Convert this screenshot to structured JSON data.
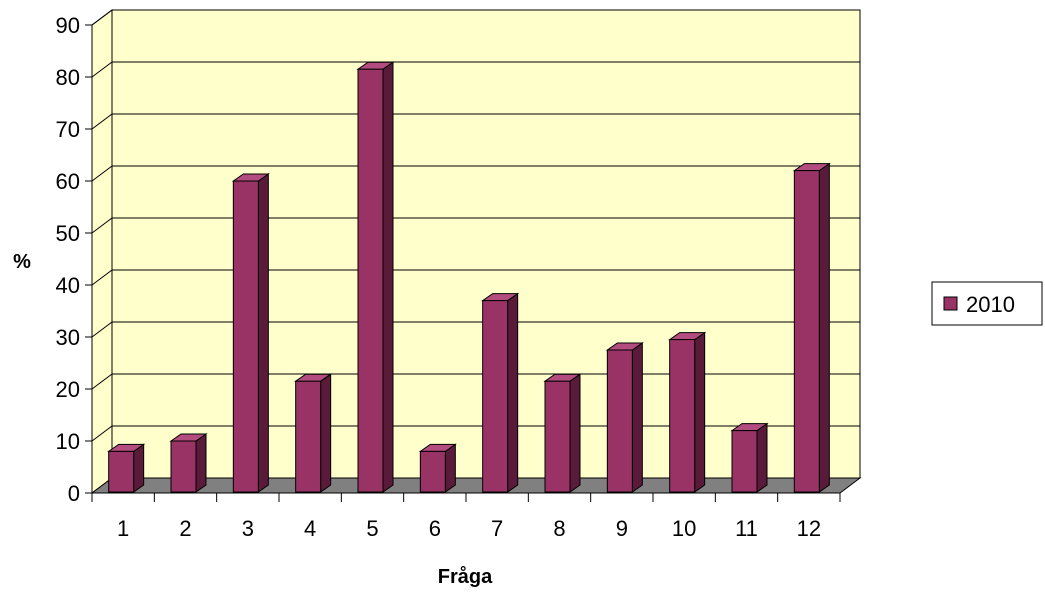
{
  "chart_data": {
    "type": "bar",
    "categories": [
      "1",
      "2",
      "3",
      "4",
      "5",
      "6",
      "7",
      "8",
      "9",
      "10",
      "11",
      "12"
    ],
    "series": [
      {
        "name": "2010",
        "values": [
          8,
          10,
          60,
          21.5,
          81.5,
          8,
          37,
          21.5,
          27.5,
          29.5,
          12,
          62
        ]
      }
    ],
    "xlabel": "Fråga",
    "ylabel": "%",
    "ylim": [
      0,
      90
    ],
    "yticks": [
      "0",
      "10",
      "20",
      "30",
      "40",
      "50",
      "60",
      "70",
      "80",
      "90"
    ],
    "grid": true,
    "legend": "right",
    "colors": {
      "bar_front": "#993366",
      "bar_side": "#5a1a3a",
      "bar_top": "#b34d7f",
      "plot_wall": "#ffffcc",
      "floor": "#808080",
      "axis": "#000000"
    }
  }
}
